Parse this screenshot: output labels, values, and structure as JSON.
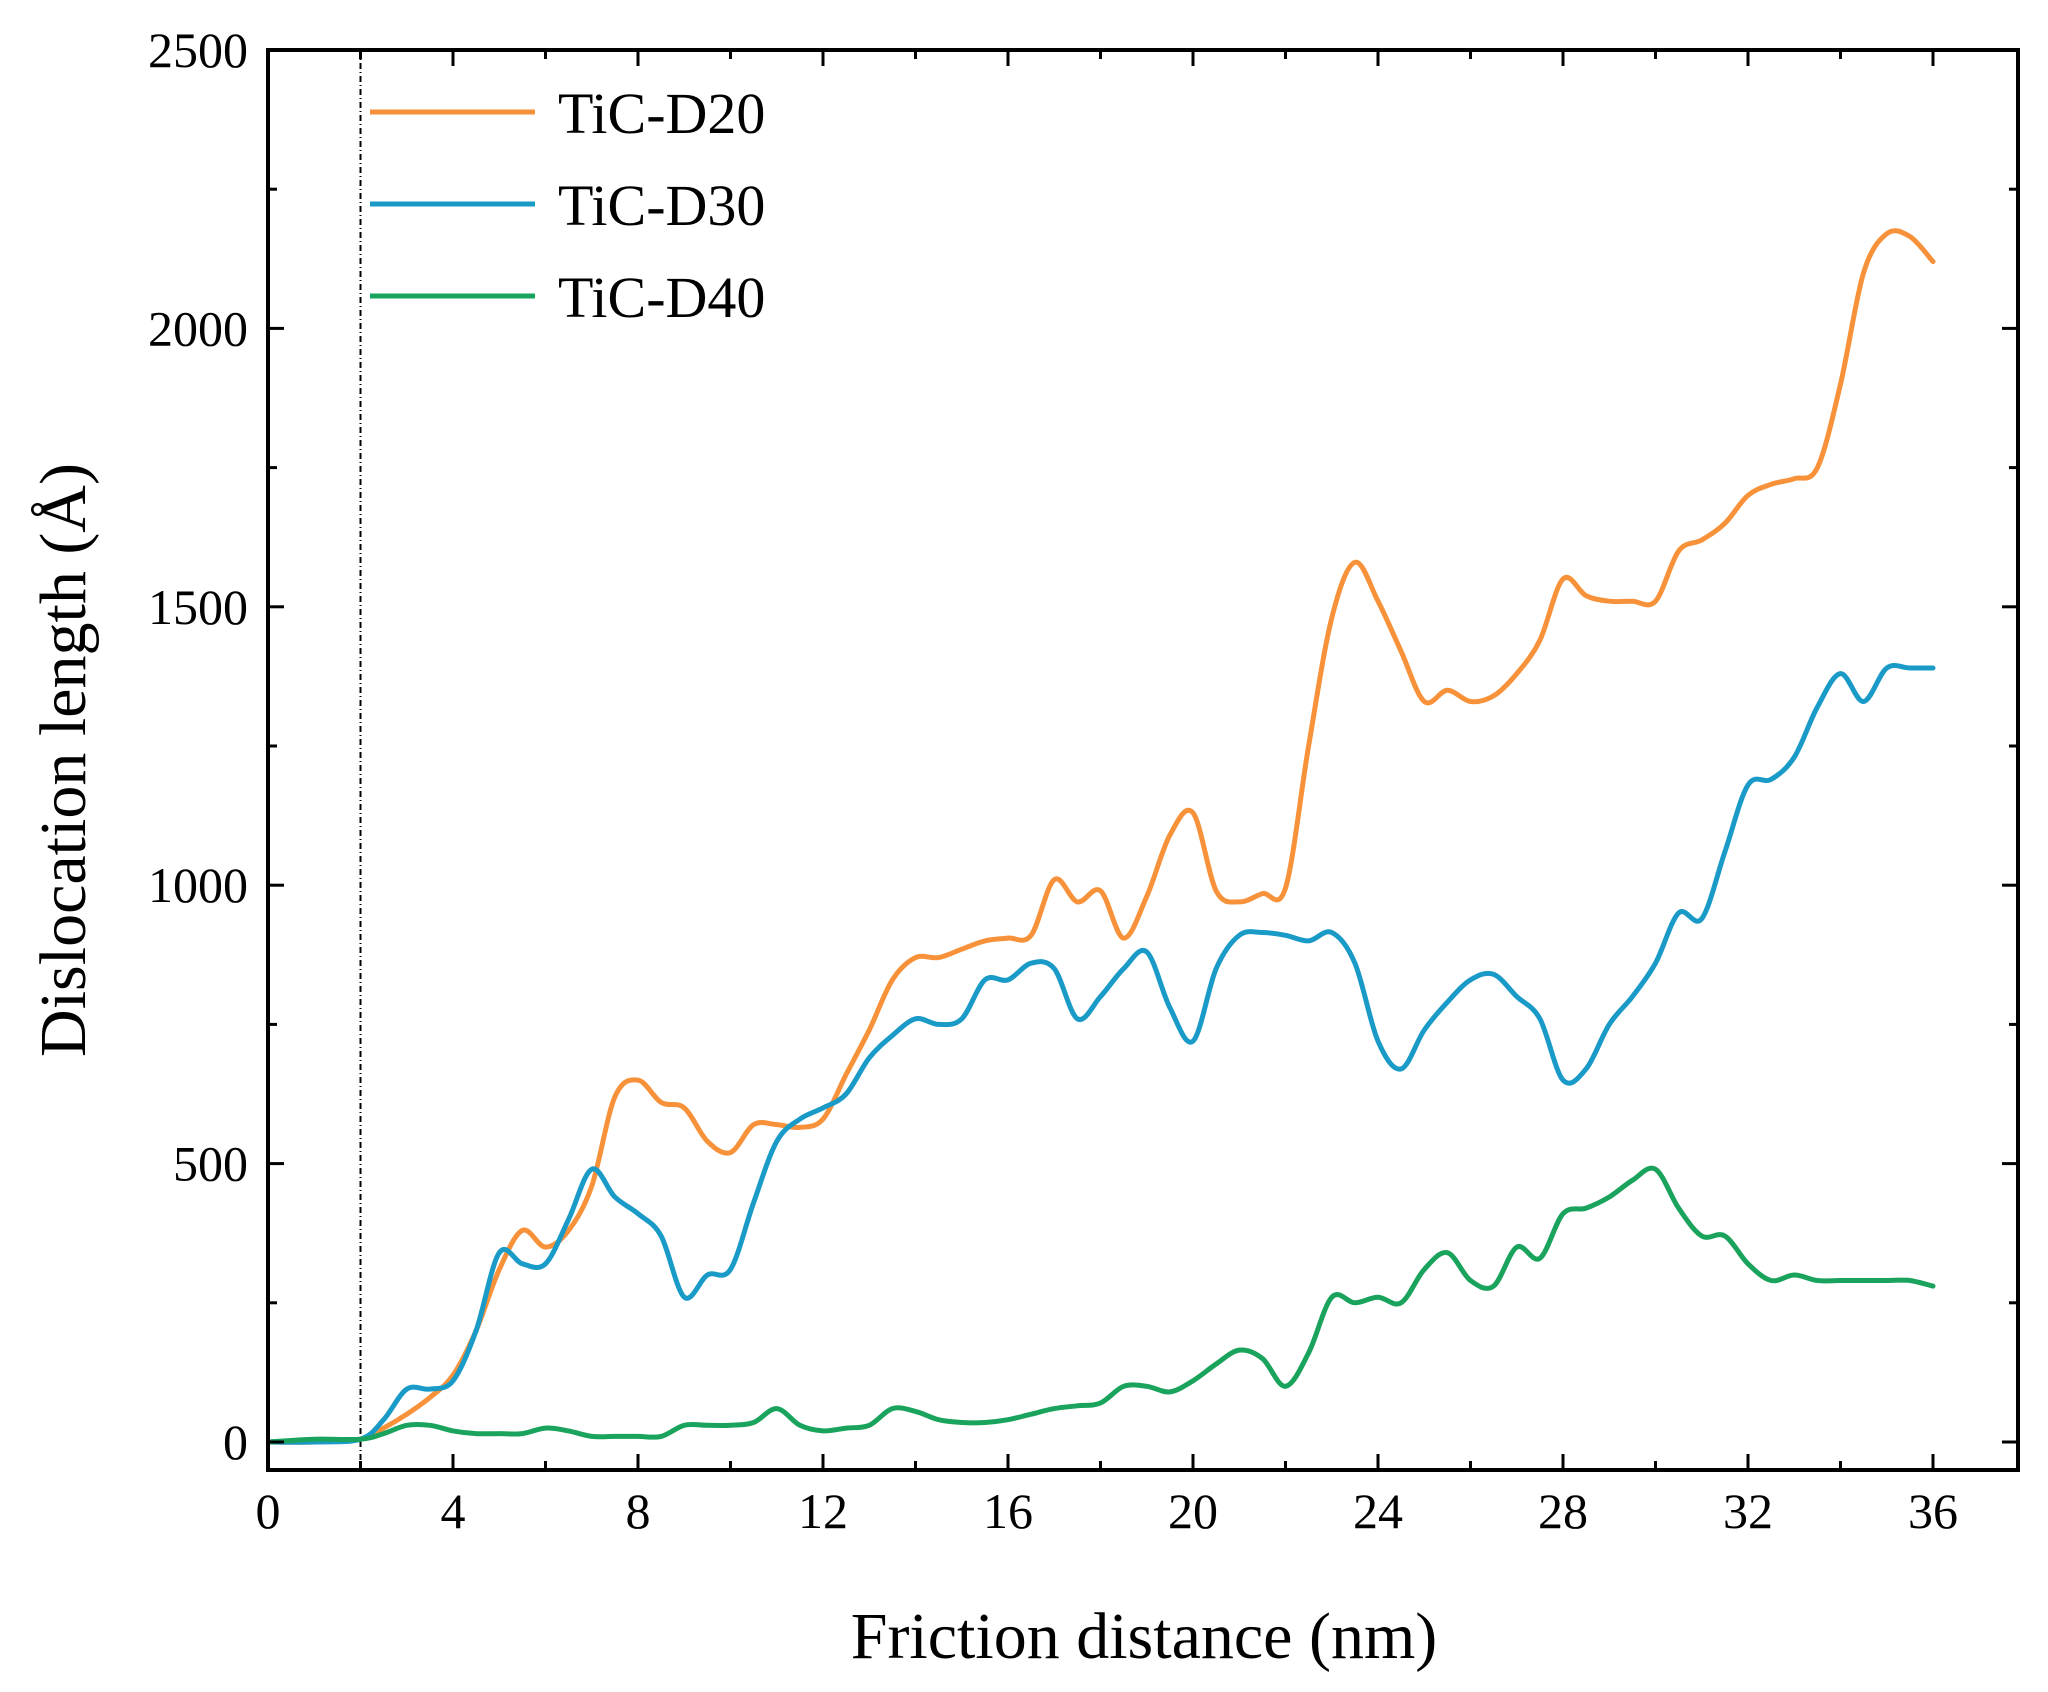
{
  "chart_data": {
    "type": "line",
    "xlabel": "Friction distance (nm)",
    "ylabel": "Dislocation length (Å)",
    "xlim": [
      0,
      38
    ],
    "ylim": [
      -50,
      2500
    ],
    "xticks": [
      0,
      4,
      8,
      12,
      16,
      20,
      24,
      28,
      32,
      36
    ],
    "yticks": [
      0,
      500,
      1000,
      1500,
      2000,
      2500
    ],
    "yminor": [
      250,
      750,
      1250,
      1750,
      2250
    ],
    "reference_line_x": 2,
    "legend_position": "top-left",
    "series": [
      {
        "name": "TiC-D20",
        "color": "#F7923A",
        "x": [
          0,
          1,
          2,
          2.5,
          3,
          3.5,
          4,
          4.5,
          5,
          5.5,
          6,
          6.5,
          7,
          7.5,
          8,
          8.5,
          9,
          9.5,
          10,
          10.5,
          11,
          11.5,
          12,
          12.5,
          13,
          13.5,
          14,
          14.5,
          15,
          15.5,
          16,
          16.5,
          17,
          17.5,
          18,
          18.5,
          19,
          19.5,
          20,
          20.5,
          21,
          21.5,
          22,
          22.5,
          23,
          23.5,
          24,
          24.5,
          25,
          25.5,
          26,
          26.5,
          27,
          27.5,
          28,
          28.5,
          29,
          29.5,
          30,
          30.5,
          31,
          31.5,
          32,
          32.5,
          33,
          33.5,
          34,
          34.5,
          35,
          35.5,
          36
        ],
        "y": [
          0,
          0,
          5,
          25,
          50,
          80,
          120,
          200,
          310,
          380,
          350,
          380,
          460,
          620,
          650,
          610,
          600,
          540,
          520,
          570,
          570,
          565,
          580,
          660,
          740,
          830,
          870,
          870,
          885,
          900,
          905,
          910,
          1010,
          970,
          990,
          905,
          980,
          1090,
          1130,
          990,
          970,
          985,
          995,
          1250,
          1480,
          1580,
          1510,
          1420,
          1330,
          1350,
          1330,
          1340,
          1380,
          1440,
          1550,
          1520,
          1510,
          1510,
          1510,
          1600,
          1620,
          1650,
          1700,
          1720,
          1730,
          1750,
          1900,
          2100,
          2170,
          2165,
          2120
        ]
      },
      {
        "name": "TiC-D30",
        "color": "#1A9AC7",
        "x": [
          0,
          1,
          2,
          2.5,
          3,
          3.5,
          4,
          4.5,
          5,
          5.5,
          6,
          6.5,
          7,
          7.5,
          8,
          8.5,
          9,
          9.5,
          10,
          10.5,
          11,
          11.5,
          12,
          12.5,
          13,
          13.5,
          14,
          14.5,
          15,
          15.5,
          16,
          16.5,
          17,
          17.5,
          18,
          18.5,
          19,
          19.5,
          20,
          20.5,
          21,
          21.5,
          22,
          22.5,
          23,
          23.5,
          24,
          24.5,
          25,
          25.5,
          26,
          26.5,
          27,
          27.5,
          28,
          28.5,
          29,
          29.5,
          30,
          30.5,
          31,
          31.5,
          32,
          32.5,
          33,
          33.5,
          34,
          34.5,
          35,
          35.5,
          36
        ],
        "y": [
          0,
          0,
          5,
          40,
          95,
          95,
          110,
          200,
          340,
          320,
          320,
          400,
          490,
          440,
          410,
          370,
          260,
          300,
          310,
          430,
          540,
          580,
          600,
          625,
          690,
          730,
          760,
          750,
          760,
          830,
          830,
          860,
          850,
          760,
          800,
          850,
          880,
          780,
          720,
          850,
          910,
          915,
          910,
          900,
          915,
          860,
          720,
          670,
          740,
          790,
          830,
          840,
          800,
          760,
          650,
          670,
          750,
          800,
          860,
          950,
          940,
          1060,
          1180,
          1190,
          1230,
          1320,
          1380,
          1330,
          1390,
          1390,
          1390
        ]
      },
      {
        "name": "TiC-D40",
        "color": "#1AA35C",
        "x": [
          0,
          1,
          2,
          2.5,
          3,
          3.5,
          4,
          4.5,
          5,
          5.5,
          6,
          6.5,
          7,
          7.5,
          8,
          8.5,
          9,
          9.5,
          10,
          10.5,
          11,
          11.5,
          12,
          12.5,
          13,
          13.5,
          14,
          14.5,
          15,
          15.5,
          16,
          16.5,
          17,
          17.5,
          18,
          18.5,
          19,
          19.5,
          20,
          20.5,
          21,
          21.5,
          22,
          22.5,
          23,
          23.5,
          24,
          24.5,
          25,
          25.5,
          26,
          26.5,
          27,
          27.5,
          28,
          28.5,
          29,
          29.5,
          30,
          30.5,
          31,
          31.5,
          32,
          32.5,
          33,
          33.5,
          34,
          34.5,
          35,
          35.5,
          36
        ],
        "y": [
          0,
          5,
          5,
          15,
          30,
          30,
          20,
          15,
          15,
          15,
          25,
          20,
          10,
          10,
          10,
          10,
          30,
          30,
          30,
          35,
          60,
          30,
          20,
          25,
          30,
          60,
          55,
          40,
          35,
          35,
          40,
          50,
          60,
          65,
          70,
          100,
          100,
          90,
          110,
          140,
          165,
          150,
          100,
          160,
          260,
          250,
          260,
          250,
          310,
          340,
          290,
          280,
          350,
          330,
          410,
          420,
          440,
          470,
          490,
          420,
          370,
          370,
          320,
          290,
          300,
          290,
          290,
          290,
          290,
          290,
          280
        ]
      }
    ]
  }
}
